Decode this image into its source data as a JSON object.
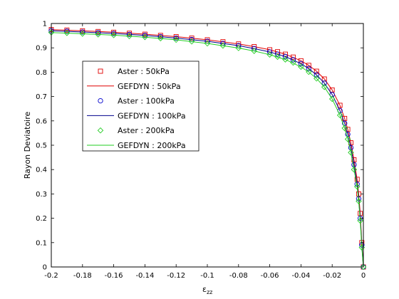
{
  "chart_data": {
    "type": "line",
    "title": "",
    "xlabel_base": "ε",
    "xlabel_sub": "zz",
    "ylabel": "Rayon Deviatoire",
    "xlim": [
      -0.2,
      0
    ],
    "ylim": [
      0,
      1
    ],
    "xticks": [
      -0.2,
      -0.18,
      -0.16,
      -0.14,
      -0.12,
      -0.1,
      -0.08,
      -0.06,
      -0.04,
      -0.02,
      0
    ],
    "xtick_labels": [
      "-0.2",
      "-0.18",
      "-0.16",
      "-0.14",
      "-0.12",
      "-0.1",
      "-0.08",
      "-0.06",
      "-0.04",
      "-0.02",
      "0"
    ],
    "yticks": [
      0,
      0.1,
      0.2,
      0.3,
      0.4,
      0.5,
      0.6,
      0.7,
      0.8,
      0.9,
      1
    ],
    "ytick_labels": [
      "0",
      "0.1",
      "0.2",
      "0.3",
      "0.4",
      "0.5",
      "0.6",
      "0.7",
      "0.8",
      "0.9",
      "1"
    ],
    "grid": false,
    "legend_position": "upper-left inside axes",
    "series": [
      {
        "name": "Aster : 50kPa",
        "kind": "marker",
        "marker": "square",
        "color": "#e00000",
        "x": [
          -0.2,
          -0.19,
          -0.18,
          -0.17,
          -0.16,
          -0.15,
          -0.14,
          -0.13,
          -0.12,
          -0.11,
          -0.1,
          -0.09,
          -0.08,
          -0.07,
          -0.06,
          -0.055,
          -0.05,
          -0.045,
          -0.04,
          -0.035,
          -0.03,
          -0.025,
          -0.02,
          -0.015,
          -0.012,
          -0.01,
          -0.008,
          -0.006,
          -0.004,
          -0.003,
          -0.002,
          -0.001,
          0
        ],
        "y": [
          0.975,
          0.973,
          0.97,
          0.967,
          0.964,
          0.96,
          0.956,
          0.951,
          0.946,
          0.94,
          0.933,
          0.925,
          0.916,
          0.905,
          0.892,
          0.884,
          0.874,
          0.862,
          0.847,
          0.828,
          0.804,
          0.772,
          0.727,
          0.664,
          0.61,
          0.565,
          0.51,
          0.44,
          0.36,
          0.3,
          0.22,
          0.1,
          0
        ]
      },
      {
        "name": "GEFDYN : 50kPa",
        "kind": "line",
        "color": "#e00000",
        "x": [
          -0.2,
          -0.18,
          -0.16,
          -0.14,
          -0.12,
          -0.1,
          -0.08,
          -0.07,
          -0.06,
          -0.05,
          -0.04,
          -0.035,
          -0.03,
          -0.025,
          -0.02,
          -0.015,
          -0.012,
          -0.01,
          -0.008,
          -0.006,
          -0.004,
          -0.003,
          -0.002,
          -0.001,
          0
        ],
        "y": [
          0.975,
          0.97,
          0.964,
          0.956,
          0.946,
          0.933,
          0.916,
          0.905,
          0.892,
          0.874,
          0.847,
          0.828,
          0.804,
          0.772,
          0.727,
          0.664,
          0.61,
          0.565,
          0.51,
          0.44,
          0.36,
          0.3,
          0.22,
          0.1,
          0
        ]
      },
      {
        "name": "Aster : 100kPa",
        "kind": "marker",
        "marker": "circle",
        "color": "#0000cc",
        "x": [
          -0.2,
          -0.19,
          -0.18,
          -0.17,
          -0.16,
          -0.15,
          -0.14,
          -0.13,
          -0.12,
          -0.11,
          -0.1,
          -0.09,
          -0.08,
          -0.07,
          -0.06,
          -0.055,
          -0.05,
          -0.045,
          -0.04,
          -0.035,
          -0.03,
          -0.025,
          -0.02,
          -0.015,
          -0.012,
          -0.01,
          -0.008,
          -0.006,
          -0.004,
          -0.003,
          -0.002,
          -0.001,
          0
        ],
        "y": [
          0.97,
          0.968,
          0.965,
          0.962,
          0.959,
          0.955,
          0.951,
          0.946,
          0.94,
          0.934,
          0.927,
          0.918,
          0.909,
          0.897,
          0.883,
          0.874,
          0.864,
          0.851,
          0.835,
          0.815,
          0.789,
          0.755,
          0.708,
          0.642,
          0.59,
          0.545,
          0.49,
          0.42,
          0.34,
          0.28,
          0.2,
          0.09,
          0
        ]
      },
      {
        "name": "GEFDYN : 100kPa",
        "kind": "line",
        "color": "#00008b",
        "x": [
          -0.2,
          -0.18,
          -0.16,
          -0.14,
          -0.12,
          -0.1,
          -0.08,
          -0.07,
          -0.06,
          -0.05,
          -0.04,
          -0.035,
          -0.03,
          -0.025,
          -0.02,
          -0.015,
          -0.012,
          -0.01,
          -0.008,
          -0.006,
          -0.004,
          -0.003,
          -0.002,
          -0.001,
          0
        ],
        "y": [
          0.97,
          0.965,
          0.959,
          0.951,
          0.94,
          0.927,
          0.909,
          0.897,
          0.883,
          0.864,
          0.835,
          0.815,
          0.789,
          0.755,
          0.708,
          0.642,
          0.59,
          0.545,
          0.49,
          0.42,
          0.34,
          0.28,
          0.2,
          0.09,
          0
        ]
      },
      {
        "name": "Aster : 200kPa",
        "kind": "marker",
        "marker": "diamond",
        "color": "#22cc22",
        "x": [
          -0.2,
          -0.19,
          -0.18,
          -0.17,
          -0.16,
          -0.15,
          -0.14,
          -0.13,
          -0.12,
          -0.11,
          -0.1,
          -0.09,
          -0.08,
          -0.07,
          -0.06,
          -0.055,
          -0.05,
          -0.045,
          -0.04,
          -0.035,
          -0.03,
          -0.025,
          -0.02,
          -0.015,
          -0.012,
          -0.01,
          -0.008,
          -0.006,
          -0.004,
          -0.003,
          -0.002,
          -0.001,
          0
        ],
        "y": [
          0.963,
          0.961,
          0.958,
          0.955,
          0.952,
          0.948,
          0.944,
          0.939,
          0.933,
          0.926,
          0.918,
          0.909,
          0.899,
          0.887,
          0.872,
          0.863,
          0.852,
          0.839,
          0.822,
          0.801,
          0.774,
          0.739,
          0.69,
          0.623,
          0.57,
          0.525,
          0.47,
          0.4,
          0.33,
          0.27,
          0.19,
          0.08,
          0
        ]
      },
      {
        "name": "GEFDYN : 200kPa",
        "kind": "line",
        "color": "#22cc22",
        "x": [
          -0.2,
          -0.18,
          -0.16,
          -0.14,
          -0.12,
          -0.1,
          -0.08,
          -0.07,
          -0.06,
          -0.05,
          -0.04,
          -0.035,
          -0.03,
          -0.025,
          -0.02,
          -0.015,
          -0.012,
          -0.01,
          -0.008,
          -0.006,
          -0.004,
          -0.003,
          -0.002,
          -0.001,
          0
        ],
        "y": [
          0.963,
          0.958,
          0.952,
          0.944,
          0.933,
          0.918,
          0.899,
          0.887,
          0.872,
          0.852,
          0.822,
          0.801,
          0.774,
          0.739,
          0.69,
          0.623,
          0.57,
          0.525,
          0.47,
          0.4,
          0.33,
          0.27,
          0.19,
          0.08,
          0
        ]
      }
    ]
  }
}
